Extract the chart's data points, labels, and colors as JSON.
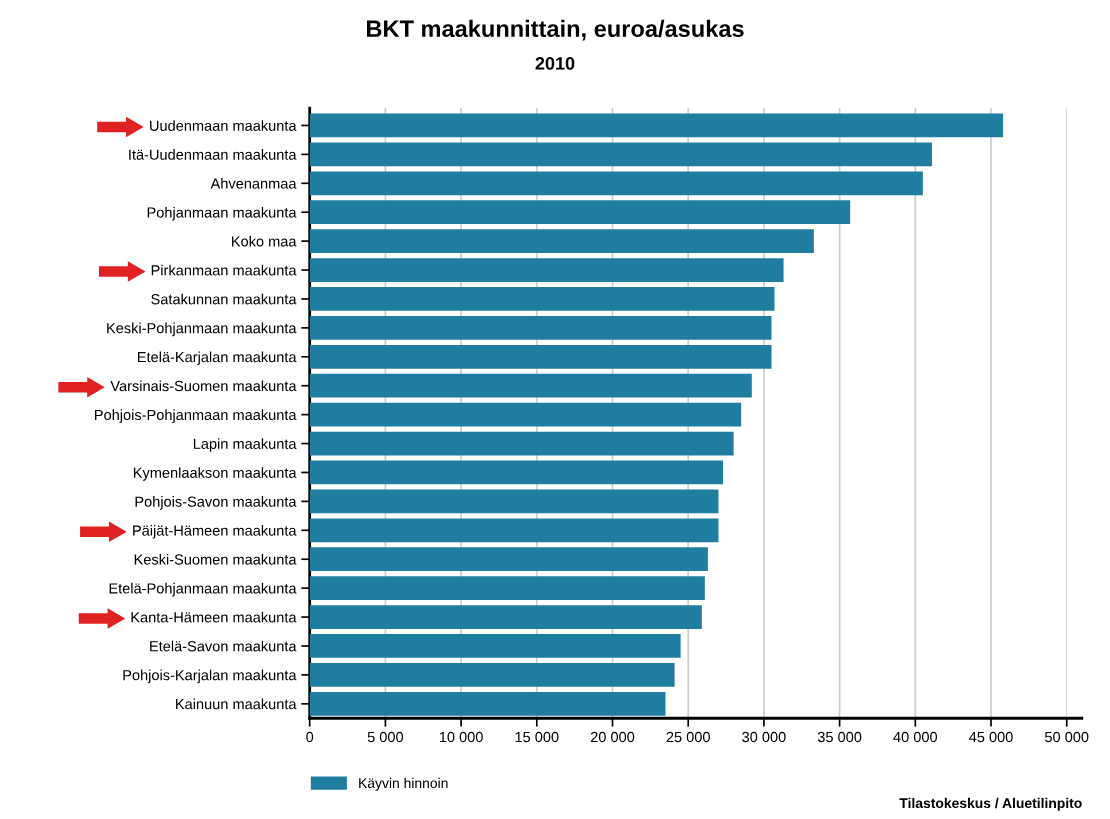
{
  "chart_data": {
    "type": "bar",
    "orientation": "horizontal",
    "title": "BKT maakunnittain, euroa/asukas",
    "subtitle": "2010",
    "categories": [
      "Uudenmaan maakunta",
      "Itä-Uudenmaan maakunta",
      "Ahvenanmaa",
      "Pohjanmaan maakunta",
      "Koko maa",
      "Pirkanmaan maakunta",
      "Satakunnan maakunta",
      "Keski-Pohjanmaan maakunta",
      "Etelä-Karjalan maakunta",
      "Varsinais-Suomen maakunta",
      "Pohjois-Pohjanmaan maakunta",
      "Lapin maakunta",
      "Kymenlaakson maakunta",
      "Pohjois-Savon maakunta",
      "Päijät-Hämeen maakunta",
      "Keski-Suomen maakunta",
      "Etelä-Pohjanmaan maakunta",
      "Kanta-Hämeen maakunta",
      "Etelä-Savon maakunta",
      "Pohjois-Karjalan maakunta",
      "Kainuun maakunta"
    ],
    "series": [
      {
        "name": "Käyvin hinnoin",
        "color": "#1f7ea0",
        "values": [
          45800,
          41100,
          40500,
          35700,
          33300,
          31300,
          30700,
          30500,
          30500,
          29200,
          28500,
          28000,
          27300,
          27000,
          27000,
          26300,
          26100,
          25900,
          24500,
          24100,
          23500
        ]
      }
    ],
    "xlim": [
      0,
      50000
    ],
    "xticks": [
      {
        "value": 0,
        "label": "0"
      },
      {
        "value": 5000,
        "label": "5 000"
      },
      {
        "value": 10000,
        "label": "10 000"
      },
      {
        "value": 15000,
        "label": "15 000"
      },
      {
        "value": 20000,
        "label": "20 000"
      },
      {
        "value": 25000,
        "label": "25 000"
      },
      {
        "value": 30000,
        "label": "30 000"
      },
      {
        "value": 35000,
        "label": "35 000"
      },
      {
        "value": 40000,
        "label": "40 000"
      },
      {
        "value": 45000,
        "label": "45 000"
      },
      {
        "value": 50000,
        "label": "50 000"
      }
    ],
    "grid": "x",
    "legend": "bottom left",
    "annotations": [
      "Tilastokeskus / Aluetilinpito"
    ]
  }
}
